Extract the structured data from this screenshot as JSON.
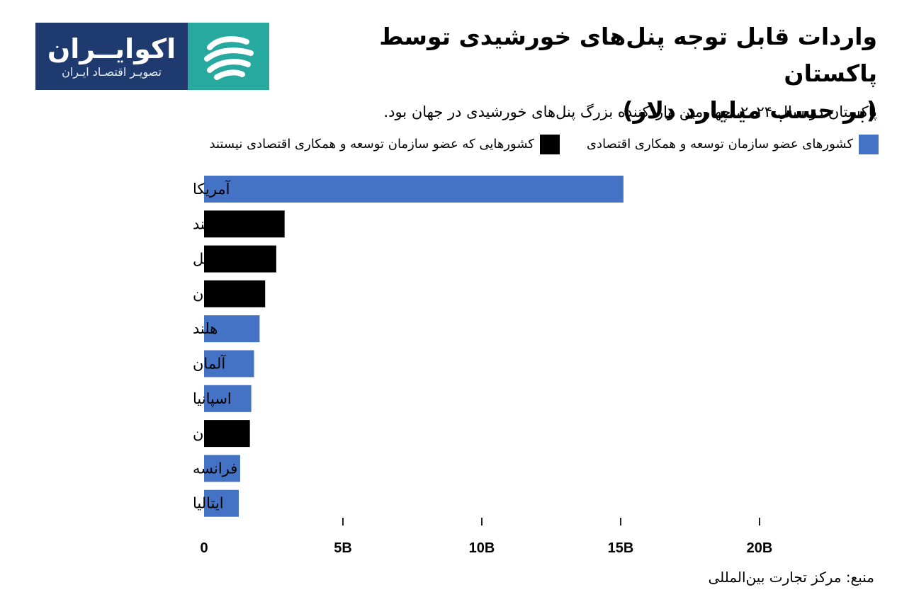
{
  "logo": {
    "brand": "اکوایــران",
    "tagline": "تصویـر اقتصـاد ایـران",
    "colors": {
      "text_bg": "#1f3a6e",
      "mark_bg": "#27a99f"
    }
  },
  "header": {
    "title_line1": "واردات قابل توجه پنل‌های خورشیدی توسط پاکستان",
    "title_line2": "(بر حسب میلیارد دلار)",
    "subtitle": "پاکستان در سال ۲۰۲۴، چهارمین واردکننده بزرگ پنل‌های خورشیدی در جهان بود."
  },
  "legend": {
    "oecd_label": "کشورهای عضو سازمان توسعه و همکاری اقتصادی",
    "non_oecd_label": "کشورهایی که عضو سازمان توسعه و همکاری اقتصادی نیستند",
    "oecd_color": "#4472c4",
    "non_oecd_color": "#000000"
  },
  "chart_data": {
    "type": "bar",
    "orientation": "horizontal",
    "categories": [
      "آمریکا",
      "هند",
      "برزیل",
      "پاکستان",
      "هلند",
      "آلمان",
      "اسپانیا",
      "عربستان",
      "فرانسه",
      "ایتالیا"
    ],
    "values": [
      15.1,
      2.9,
      2.6,
      2.2,
      2.0,
      1.8,
      1.7,
      1.65,
      1.3,
      1.25
    ],
    "groups": [
      "oecd",
      "non_oecd",
      "non_oecd",
      "non_oecd",
      "oecd",
      "oecd",
      "oecd",
      "non_oecd",
      "oecd",
      "oecd"
    ],
    "xlim": [
      0,
      20
    ],
    "xticks": [
      0,
      5,
      10,
      15,
      20
    ],
    "xtick_labels": [
      "0",
      "5B",
      "10B",
      "15B",
      "20B"
    ],
    "grid": false,
    "legend_position": "top"
  },
  "footer": {
    "source": "منبع: مرکز تجارت بین‌المللی"
  }
}
